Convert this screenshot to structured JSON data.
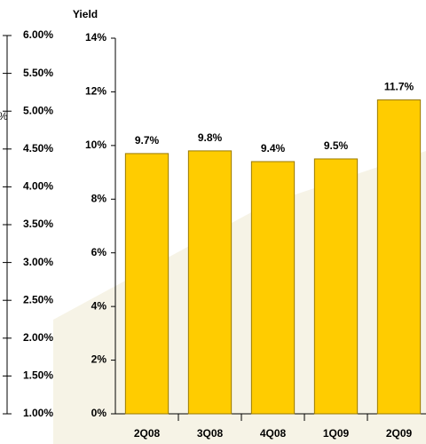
{
  "chart_data": {
    "type": "bar",
    "y2label": "Yield",
    "y2lim": [
      1,
      6
    ],
    "y2ticks": [
      {
        "value": 1,
        "label": "1.00%"
      },
      {
        "value": 1.5,
        "label": "1.50%"
      },
      {
        "value": 2,
        "label": "2.00%"
      },
      {
        "value": 2.5,
        "label": "2.50%"
      },
      {
        "value": 3,
        "label": "3.00%"
      },
      {
        "value": 3.5,
        "label": "3.50%"
      },
      {
        "value": 4,
        "label": "4.00%"
      },
      {
        "value": 4.5,
        "label": "4.50%"
      },
      {
        "value": 5,
        "label": "5.00%"
      },
      {
        "value": 5.5,
        "label": "5.50%"
      },
      {
        "value": 6,
        "label": "6.00%"
      }
    ],
    "fragment": "%",
    "categories": [
      "2Q08",
      "3Q08",
      "4Q08",
      "1Q09",
      "2Q09"
    ],
    "values": [
      9.7,
      9.8,
      9.4,
      9.5,
      11.7
    ],
    "value_labels": [
      "9.7%",
      "9.8%",
      "9.4%",
      "9.5%",
      "11.7%"
    ],
    "color": "#ffcc00",
    "ylim": [
      0,
      14
    ],
    "yticks": [
      {
        "value": 0,
        "label": "0%"
      },
      {
        "value": 2,
        "label": "2%"
      },
      {
        "value": 4,
        "label": "4%"
      },
      {
        "value": 6,
        "label": "6%"
      },
      {
        "value": 8,
        "label": "8%"
      },
      {
        "value": 10,
        "label": "10%"
      },
      {
        "value": 12,
        "label": "12%"
      },
      {
        "value": 14,
        "label": "14%"
      }
    ]
  }
}
